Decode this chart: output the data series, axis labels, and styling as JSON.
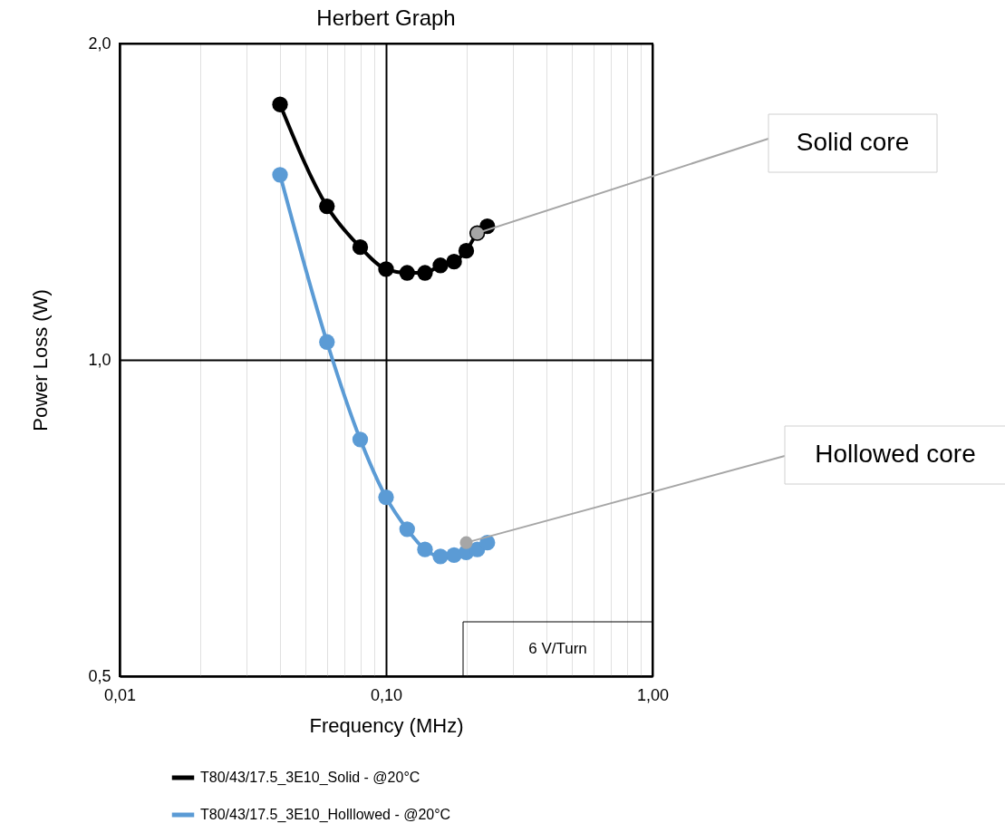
{
  "chart_data": {
    "type": "line",
    "title": "Herbert Graph",
    "xlabel": "Frequency (MHz)",
    "ylabel": "Power Loss  (W)",
    "log": "xy",
    "grid": true,
    "legend": "bottom",
    "marker": "circle",
    "line_style": "solid",
    "xlim": [
      0.01,
      1
    ],
    "ylim": [
      0.5,
      2
    ],
    "xticks": [
      {
        "value": 0.01,
        "label": "0,01"
      },
      {
        "value": 0.02,
        "label": null
      },
      {
        "value": 0.03,
        "label": null
      },
      {
        "value": 0.04,
        "label": null
      },
      {
        "value": 0.05,
        "label": null
      },
      {
        "value": 0.06,
        "label": null
      },
      {
        "value": 0.07,
        "label": null
      },
      {
        "value": 0.08,
        "label": null
      },
      {
        "value": 0.09,
        "label": null
      },
      {
        "value": 0.1,
        "label": "0,10"
      },
      {
        "value": 0.2,
        "label": null
      },
      {
        "value": 0.3,
        "label": null
      },
      {
        "value": 0.4,
        "label": null
      },
      {
        "value": 0.5,
        "label": null
      },
      {
        "value": 0.6,
        "label": null
      },
      {
        "value": 0.7,
        "label": null
      },
      {
        "value": 0.8,
        "label": null
      },
      {
        "value": 0.9,
        "label": null
      },
      {
        "value": 1,
        "label": "1,00"
      }
    ],
    "yticks": [
      {
        "value": 0.5,
        "label": "0,5"
      },
      {
        "value": 1,
        "label": "1,0"
      },
      {
        "value": 2,
        "label": "2,0"
      }
    ],
    "x": [
      0.04,
      0.06,
      0.08,
      0.1,
      0.12,
      0.14,
      0.16,
      0.18,
      0.2,
      0.22,
      0.24
    ],
    "series": [
      {
        "name": "T80/43/17.5_3E10_Solid - @20°C",
        "color": "#000000",
        "values": [
          1.75,
          1.4,
          1.28,
          1.22,
          1.21,
          1.21,
          1.23,
          1.24,
          1.27,
          1.32,
          1.34
        ]
      },
      {
        "name": "T80/43/17.5_3E10_Holllowed - @20°C",
        "color": "#5b9bd5",
        "values": [
          1.5,
          1.04,
          0.84,
          0.74,
          0.69,
          0.66,
          0.65,
          0.652,
          0.656,
          0.66,
          0.67
        ]
      }
    ],
    "annotations": [
      {
        "text": "Solid core",
        "x": 0.22,
        "y": 1.32
      },
      {
        "text": "Hollowed core",
        "x": 0.2,
        "y": 0.67
      },
      "6 V/Turn"
    ]
  }
}
